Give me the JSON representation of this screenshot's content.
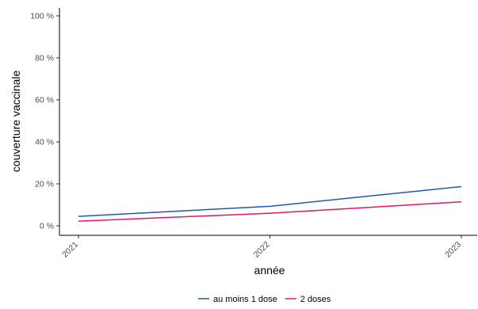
{
  "chart_data": {
    "type": "line",
    "x": [
      "2021",
      "2022",
      "2023"
    ],
    "series": [
      {
        "name": "au moins 1 dose",
        "values": [
          4.5,
          9.3,
          18.7
        ],
        "color": "#1f5aa6"
      },
      {
        "name": "2 doses",
        "values": [
          2.2,
          6.0,
          11.4
        ],
        "color": "#e3175e"
      }
    ],
    "xlabel": "année",
    "ylabel": "couverture vaccinale",
    "ylim": [
      0,
      100
    ],
    "yticks": [
      "0 %",
      "20 %",
      "40 %",
      "60 %",
      "80 %",
      "100 %"
    ],
    "ytick_values": [
      0,
      20,
      40,
      60,
      80,
      100
    ],
    "grid": false,
    "legend_position": "bottom"
  }
}
